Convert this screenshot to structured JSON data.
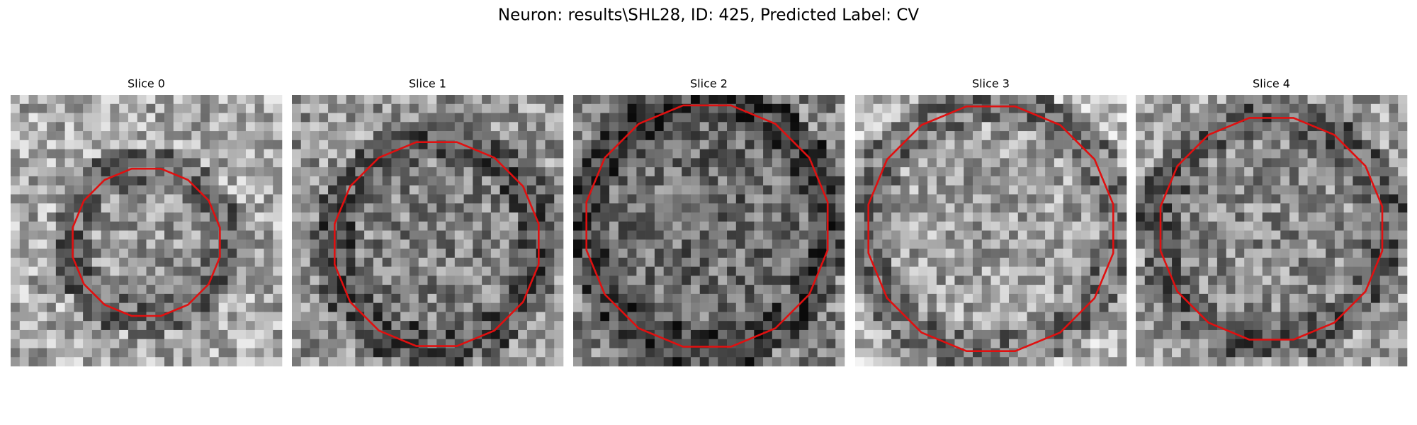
{
  "figure": {
    "title": "Neuron: results\\SHL28, ID: 425, Predicted Label: CV",
    "panels": [
      {
        "title": "Slice 0"
      },
      {
        "title": "Slice 1"
      },
      {
        "title": "Slice 2"
      },
      {
        "title": "Slice 3"
      },
      {
        "title": "Slice 4"
      }
    ]
  }
}
